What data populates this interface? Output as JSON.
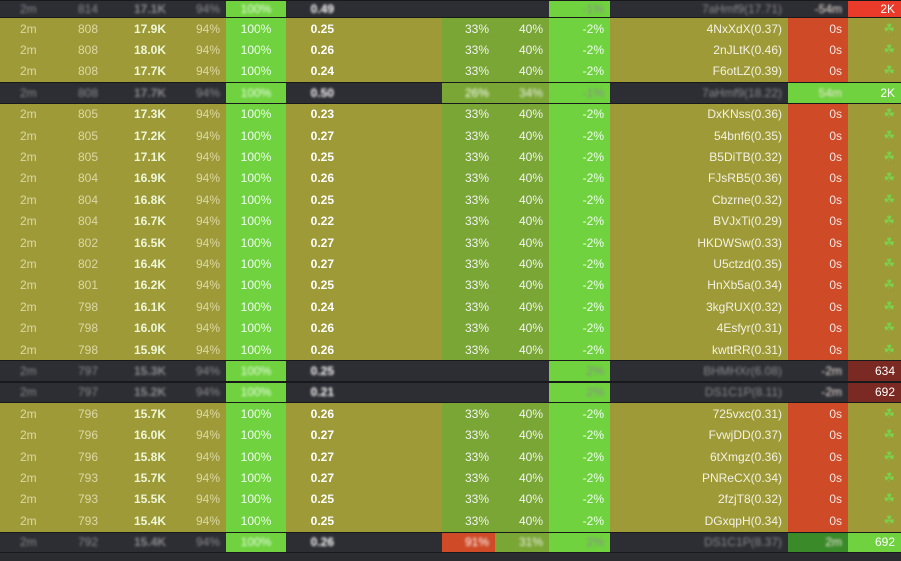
{
  "colors": {
    "olive": "#9e9a38",
    "olive_text": "#dcd8a6",
    "green": "#6fd23e",
    "green_text": "#f0fff0",
    "mid_green": "#79a634",
    "dark": "#2d2e33",
    "dark_text": "#8b8c90",
    "red": "#cf4a27",
    "bright_red": "#ea3b2a",
    "dark_red": "#7a2a22",
    "icon_green": "#7ad04a"
  },
  "rows": [
    {
      "type": "dark",
      "age": "2m",
      "num": "814",
      "vol": "17.1K",
      "pct1": "94%",
      "pct2": "100%",
      "score": "0.49",
      "p3": "",
      "p4": "",
      "p5": "-1%",
      "id": "7aHmf9(17.71)",
      "time": "-54m",
      "last": "2K",
      "lastColor": "bright_red"
    },
    {
      "type": "olive",
      "age": "2m",
      "num": "808",
      "vol": "17.9K",
      "pct1": "94%",
      "pct2": "100%",
      "score": "0.25",
      "p3": "33%",
      "p4": "40%",
      "p5": "-2%",
      "id": "4NxXdX(0.37)",
      "time": "0s",
      "last": "☘"
    },
    {
      "type": "olive",
      "age": "2m",
      "num": "808",
      "vol": "18.0K",
      "pct1": "94%",
      "pct2": "100%",
      "score": "0.26",
      "p3": "33%",
      "p4": "40%",
      "p5": "-2%",
      "id": "2nJLtK(0.46)",
      "time": "0s",
      "last": "☘"
    },
    {
      "type": "olive",
      "age": "2m",
      "num": "808",
      "vol": "17.7K",
      "pct1": "94%",
      "pct2": "100%",
      "score": "0.24",
      "p3": "33%",
      "p4": "40%",
      "p5": "-2%",
      "id": "F6otLZ(0.39)",
      "time": "0s",
      "last": "☘"
    },
    {
      "type": "dark",
      "age": "2m",
      "num": "808",
      "vol": "17.7K",
      "pct1": "94%",
      "pct2": "100%",
      "score": "0.50",
      "p3": "26%",
      "p4": "34%",
      "p5": "-1%",
      "id": "7aHmf9(18.22)",
      "time": "54m",
      "last": "2K",
      "lastColor": "green",
      "timeColor": "green",
      "p3Color": "mid_green",
      "p4Color": "mid_green"
    },
    {
      "type": "olive",
      "age": "2m",
      "num": "805",
      "vol": "17.3K",
      "pct1": "94%",
      "pct2": "100%",
      "score": "0.23",
      "p3": "33%",
      "p4": "40%",
      "p5": "-2%",
      "id": "DxKNss(0.36)",
      "time": "0s",
      "last": "☘"
    },
    {
      "type": "olive",
      "age": "2m",
      "num": "805",
      "vol": "17.2K",
      "pct1": "94%",
      "pct2": "100%",
      "score": "0.27",
      "p3": "33%",
      "p4": "40%",
      "p5": "-2%",
      "id": "54bnf6(0.35)",
      "time": "0s",
      "last": "☘"
    },
    {
      "type": "olive",
      "age": "2m",
      "num": "805",
      "vol": "17.1K",
      "pct1": "94%",
      "pct2": "100%",
      "score": "0.25",
      "p3": "33%",
      "p4": "40%",
      "p5": "-2%",
      "id": "B5DiTB(0.32)",
      "time": "0s",
      "last": "☘"
    },
    {
      "type": "olive",
      "age": "2m",
      "num": "804",
      "vol": "16.9K",
      "pct1": "94%",
      "pct2": "100%",
      "score": "0.26",
      "p3": "33%",
      "p4": "40%",
      "p5": "-2%",
      "id": "FJsRB5(0.36)",
      "time": "0s",
      "last": "☘"
    },
    {
      "type": "olive",
      "age": "2m",
      "num": "804",
      "vol": "16.8K",
      "pct1": "94%",
      "pct2": "100%",
      "score": "0.25",
      "p3": "33%",
      "p4": "40%",
      "p5": "-2%",
      "id": "Cbzrne(0.32)",
      "time": "0s",
      "last": "☘"
    },
    {
      "type": "olive",
      "age": "2m",
      "num": "804",
      "vol": "16.7K",
      "pct1": "94%",
      "pct2": "100%",
      "score": "0.22",
      "p3": "33%",
      "p4": "40%",
      "p5": "-2%",
      "id": "BVJxTi(0.29)",
      "time": "0s",
      "last": "☘"
    },
    {
      "type": "olive",
      "age": "2m",
      "num": "802",
      "vol": "16.5K",
      "pct1": "94%",
      "pct2": "100%",
      "score": "0.27",
      "p3": "33%",
      "p4": "40%",
      "p5": "-2%",
      "id": "HKDWSw(0.33)",
      "time": "0s",
      "last": "☘"
    },
    {
      "type": "olive",
      "age": "2m",
      "num": "802",
      "vol": "16.4K",
      "pct1": "94%",
      "pct2": "100%",
      "score": "0.27",
      "p3": "33%",
      "p4": "40%",
      "p5": "-2%",
      "id": "U5ctzd(0.35)",
      "time": "0s",
      "last": "☘"
    },
    {
      "type": "olive",
      "age": "2m",
      "num": "801",
      "vol": "16.2K",
      "pct1": "94%",
      "pct2": "100%",
      "score": "0.25",
      "p3": "33%",
      "p4": "40%",
      "p5": "-2%",
      "id": "HnXb5a(0.34)",
      "time": "0s",
      "last": "☘"
    },
    {
      "type": "olive",
      "age": "2m",
      "num": "798",
      "vol": "16.1K",
      "pct1": "94%",
      "pct2": "100%",
      "score": "0.24",
      "p3": "33%",
      "p4": "40%",
      "p5": "-2%",
      "id": "3kgRUX(0.32)",
      "time": "0s",
      "last": "☘"
    },
    {
      "type": "olive",
      "age": "2m",
      "num": "798",
      "vol": "16.0K",
      "pct1": "94%",
      "pct2": "100%",
      "score": "0.26",
      "p3": "33%",
      "p4": "40%",
      "p5": "-2%",
      "id": "4Esfyr(0.31)",
      "time": "0s",
      "last": "☘"
    },
    {
      "type": "olive",
      "age": "2m",
      "num": "798",
      "vol": "15.9K",
      "pct1": "94%",
      "pct2": "100%",
      "score": "0.26",
      "p3": "33%",
      "p4": "40%",
      "p5": "-2%",
      "id": "kwttRR(0.31)",
      "time": "0s",
      "last": "☘"
    },
    {
      "type": "dark",
      "age": "2m",
      "num": "797",
      "vol": "15.3K",
      "pct1": "94%",
      "pct2": "100%",
      "score": "0.25",
      "p3": "",
      "p4": "",
      "p5": "2%",
      "id": "BHMHXr(6.08)",
      "time": "-2m",
      "last": "634",
      "lastColor": "dark_red"
    },
    {
      "type": "dark",
      "age": "2m",
      "num": "797",
      "vol": "15.2K",
      "pct1": "94%",
      "pct2": "100%",
      "score": "0.21",
      "p3": "",
      "p4": "",
      "p5": "2%",
      "id": "DS1C1P(8.11)",
      "time": "-2m",
      "last": "692",
      "lastColor": "dark_red"
    },
    {
      "type": "olive",
      "age": "2m",
      "num": "796",
      "vol": "15.7K",
      "pct1": "94%",
      "pct2": "100%",
      "score": "0.26",
      "p3": "33%",
      "p4": "40%",
      "p5": "-2%",
      "id": "725vxc(0.31)",
      "time": "0s",
      "last": "☘"
    },
    {
      "type": "olive",
      "age": "2m",
      "num": "796",
      "vol": "16.0K",
      "pct1": "94%",
      "pct2": "100%",
      "score": "0.27",
      "p3": "33%",
      "p4": "40%",
      "p5": "-2%",
      "id": "FvwjDD(0.37)",
      "time": "0s",
      "last": "☘"
    },
    {
      "type": "olive",
      "age": "2m",
      "num": "796",
      "vol": "15.8K",
      "pct1": "94%",
      "pct2": "100%",
      "score": "0.27",
      "p3": "33%",
      "p4": "40%",
      "p5": "-2%",
      "id": "6tXmgz(0.36)",
      "time": "0s",
      "last": "☘"
    },
    {
      "type": "olive",
      "age": "2m",
      "num": "793",
      "vol": "15.7K",
      "pct1": "94%",
      "pct2": "100%",
      "score": "0.27",
      "p3": "33%",
      "p4": "40%",
      "p5": "-2%",
      "id": "PNReCX(0.34)",
      "time": "0s",
      "last": "☘"
    },
    {
      "type": "olive",
      "age": "2m",
      "num": "793",
      "vol": "15.5K",
      "pct1": "94%",
      "pct2": "100%",
      "score": "0.25",
      "p3": "33%",
      "p4": "40%",
      "p5": "-2%",
      "id": "2fzjT8(0.32)",
      "time": "0s",
      "last": "☘"
    },
    {
      "type": "olive",
      "age": "2m",
      "num": "793",
      "vol": "15.4K",
      "pct1": "94%",
      "pct2": "100%",
      "score": "0.25",
      "p3": "33%",
      "p4": "40%",
      "p5": "-2%",
      "id": "DGxqpH(0.34)",
      "time": "0s",
      "last": "☘"
    },
    {
      "type": "dark",
      "age": "2m",
      "num": "792",
      "vol": "15.4K",
      "pct1": "94%",
      "pct2": "100%",
      "score": "0.26",
      "p3": "91%",
      "p4": "31%",
      "p5": "2%",
      "id": "DS1C1P(8.37)",
      "time": "2m",
      "last": "692",
      "lastColor": "green",
      "timeColor": "dark_green",
      "p3Color": "red",
      "p4Color": "mid_green"
    }
  ]
}
